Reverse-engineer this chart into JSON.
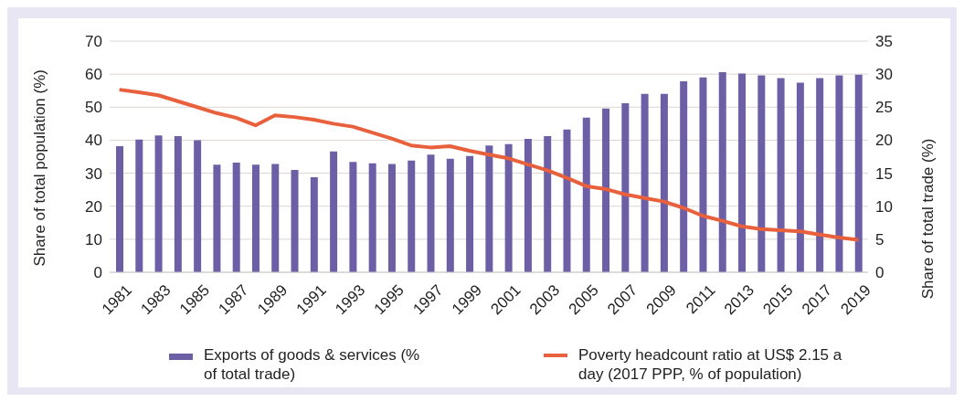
{
  "chart_data": {
    "type": "bar",
    "ylabel": "Share of total population (%)",
    "y2label": "Share of total trade (%)",
    "categories": [
      "1981",
      null,
      "1983",
      null,
      "1985",
      null,
      "1987",
      null,
      "1989",
      null,
      "1991",
      null,
      "1993",
      null,
      "1995",
      null,
      "1997",
      null,
      "1999",
      null,
      "2001",
      null,
      "2003",
      null,
      "2005",
      null,
      "2007",
      null,
      "2009",
      null,
      "2011",
      null,
      "2013",
      null,
      "2015",
      null,
      "2017",
      null,
      "2019"
    ],
    "series": [
      {
        "name": "Exports of goods & services (% of total trade)",
        "axis": "y2",
        "color": "#6d5fa6",
        "values": [
          19.1,
          20.1,
          20.7,
          20.6,
          20.0,
          16.3,
          16.6,
          16.3,
          16.4,
          15.5,
          14.4,
          18.3,
          16.7,
          16.5,
          16.4,
          16.9,
          17.8,
          17.2,
          17.6,
          19.2,
          19.4,
          20.2,
          20.6,
          21.6,
          23.4,
          24.8,
          25.6,
          27.0,
          27.0,
          28.9,
          29.5,
          30.3,
          30.1,
          29.8,
          29.4,
          28.7,
          29.4,
          29.8,
          29.9
        ]
      },
      {
        "name": "Poverty headcount ratio at US$ 2.15 a day (2017 PPP, % of population)",
        "type": "line",
        "axis": "y",
        "color": "#e8603c",
        "values": [
          55.3,
          54.5,
          53.6,
          51.8,
          50.0,
          48.2,
          46.8,
          44.5,
          47.5,
          47.0,
          46.2,
          45.0,
          44.1,
          42.3,
          40.5,
          38.4,
          37.8,
          38.2,
          36.8,
          35.6,
          34.5,
          32.7,
          30.9,
          28.6,
          26.1,
          25.2,
          23.6,
          22.5,
          21.4,
          19.5,
          17.1,
          15.6,
          13.9,
          13.1,
          12.7,
          12.4,
          11.4,
          10.5,
          9.8
        ]
      }
    ],
    "ylim": [
      0,
      70
    ],
    "yticks": [
      0,
      10,
      20,
      30,
      40,
      50,
      60,
      70
    ],
    "y2lim": [
      0,
      35
    ],
    "y2ticks": [
      0,
      5,
      10,
      15,
      20,
      25,
      30,
      35
    ],
    "grid": "y",
    "legend": "bottom",
    "marker": "none",
    "line_style": "solid"
  }
}
